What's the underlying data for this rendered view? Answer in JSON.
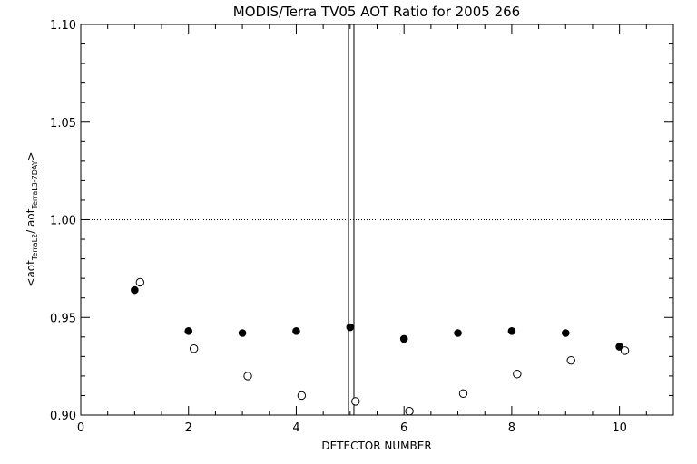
{
  "chart_data": {
    "type": "scatter",
    "title": "MODIS/Terra TV05 AOT Ratio for 2005 266",
    "xlabel": "DETECTOR NUMBER",
    "ylabel": {
      "prefix": "<aot",
      "sub1": "TerraL2",
      "mid": "/ aot",
      "sub2": "TerraL3-7DAY",
      "suffix": ">"
    },
    "xlim": [
      0,
      11
    ],
    "ylim": [
      0.9,
      1.1
    ],
    "x_ticks": [
      0,
      2,
      4,
      6,
      8,
      10
    ],
    "x_tick_labels": [
      "0",
      "2",
      "4",
      "6",
      "8",
      "10"
    ],
    "y_ticks": [
      0.9,
      0.95,
      1.0,
      1.05,
      1.1
    ],
    "y_tick_labels": [
      "0.90",
      "0.95",
      "1.00",
      "1.05",
      "1.10"
    ],
    "reference_line": {
      "y": 1.0,
      "style": "dotted"
    },
    "vertical_lines": [
      4.97,
      5.07
    ],
    "series": [
      {
        "marker": "filled-circle",
        "x": [
          1,
          2,
          3,
          4,
          5,
          6,
          7,
          8,
          9,
          10
        ],
        "y": [
          0.964,
          0.943,
          0.942,
          0.943,
          0.945,
          0.939,
          0.942,
          0.943,
          0.942,
          0.935
        ]
      },
      {
        "marker": "open-circle",
        "x": [
          1.1,
          2.1,
          3.1,
          4.1,
          5.1,
          6.1,
          7.1,
          8.1,
          9.1,
          10.1
        ],
        "y": [
          0.968,
          0.934,
          0.92,
          0.91,
          0.907,
          0.902,
          0.911,
          0.921,
          0.928,
          0.933
        ]
      }
    ],
    "grid": false
  }
}
